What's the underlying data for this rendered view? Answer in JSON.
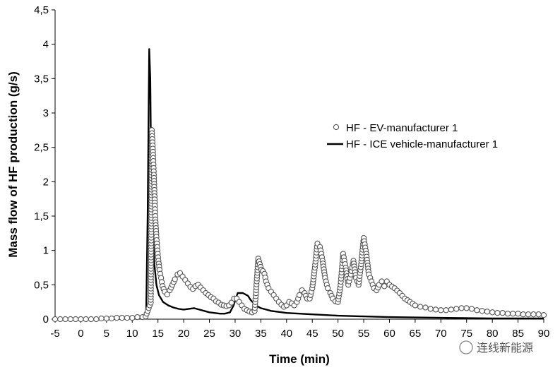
{
  "chart_data": {
    "type": "scatter",
    "title": "",
    "xlabel": "Time (min)",
    "ylabel": "Mass flow of HF production (g/s)",
    "xlim": [
      -5,
      90
    ],
    "ylim": [
      0,
      4.5
    ],
    "x_ticks": [
      "-5",
      "0",
      "5",
      "10",
      "15",
      "20",
      "25",
      "30",
      "35",
      "40",
      "45",
      "50",
      "55",
      "60",
      "65",
      "70",
      "75",
      "80",
      "85",
      "90"
    ],
    "y_ticks": [
      "0",
      "0,5",
      "1",
      "1,5",
      "2",
      "2,5",
      "3",
      "3,5",
      "4",
      "4,5"
    ],
    "grid": false,
    "legend_position": "right",
    "series": [
      {
        "name": "HF - EV-manufacturer 1",
        "style": "open-circles",
        "color": "#555555",
        "points": [
          [
            -5,
            0.0
          ],
          [
            -4,
            0.0
          ],
          [
            -3,
            0.0
          ],
          [
            -2,
            0.0
          ],
          [
            -1,
            0.0
          ],
          [
            0,
            0.0
          ],
          [
            1,
            0.0
          ],
          [
            2,
            0.0
          ],
          [
            3,
            0.0
          ],
          [
            4,
            0.01
          ],
          [
            5,
            0.01
          ],
          [
            6,
            0.01
          ],
          [
            7,
            0.02
          ],
          [
            8,
            0.02
          ],
          [
            9,
            0.02
          ],
          [
            10,
            0.02
          ],
          [
            11,
            0.03
          ],
          [
            12,
            0.03
          ],
          [
            12.6,
            0.04
          ],
          [
            13.6,
            0.24
          ],
          [
            13.7,
            1.35
          ],
          [
            13.8,
            2.75
          ],
          [
            13.9,
            2.62
          ],
          [
            14.0,
            2.48
          ],
          [
            14.1,
            2.3
          ],
          [
            14.2,
            2.1
          ],
          [
            14.3,
            1.88
          ],
          [
            14.4,
            1.65
          ],
          [
            14.5,
            1.45
          ],
          [
            14.7,
            1.2
          ],
          [
            14.9,
            1.0
          ],
          [
            15.1,
            0.85
          ],
          [
            15.3,
            0.72
          ],
          [
            15.6,
            0.6
          ],
          [
            15.9,
            0.48
          ],
          [
            16.3,
            0.4
          ],
          [
            16.8,
            0.36
          ],
          [
            17.3,
            0.42
          ],
          [
            17.8,
            0.5
          ],
          [
            18.3,
            0.58
          ],
          [
            18.8,
            0.65
          ],
          [
            19.3,
            0.67
          ],
          [
            19.8,
            0.62
          ],
          [
            20.3,
            0.57
          ],
          [
            20.8,
            0.52
          ],
          [
            21.3,
            0.47
          ],
          [
            21.8,
            0.44
          ],
          [
            22.3,
            0.48
          ],
          [
            22.8,
            0.5
          ],
          [
            23.3,
            0.46
          ],
          [
            23.8,
            0.42
          ],
          [
            24.3,
            0.38
          ],
          [
            24.8,
            0.35
          ],
          [
            25.3,
            0.32
          ],
          [
            25.8,
            0.3
          ],
          [
            26.3,
            0.26
          ],
          [
            26.8,
            0.24
          ],
          [
            27.3,
            0.21
          ],
          [
            27.8,
            0.2
          ],
          [
            28.3,
            0.19
          ],
          [
            28.8,
            0.2
          ],
          [
            29.3,
            0.24
          ],
          [
            29.8,
            0.3
          ],
          [
            30.3,
            0.3
          ],
          [
            30.8,
            0.25
          ],
          [
            31.3,
            0.2
          ],
          [
            31.8,
            0.15
          ],
          [
            32.3,
            0.13
          ],
          [
            32.8,
            0.11
          ],
          [
            33.3,
            0.1
          ],
          [
            33.8,
            0.12
          ],
          [
            34.2,
            0.55
          ],
          [
            34.5,
            0.88
          ],
          [
            34.8,
            0.8
          ],
          [
            35.1,
            0.72
          ],
          [
            35.4,
            0.7
          ],
          [
            35.7,
            0.66
          ],
          [
            36.0,
            0.55
          ],
          [
            36.5,
            0.45
          ],
          [
            37.0,
            0.4
          ],
          [
            37.5,
            0.35
          ],
          [
            38.0,
            0.3
          ],
          [
            38.5,
            0.25
          ],
          [
            39.0,
            0.21
          ],
          [
            39.5,
            0.18
          ],
          [
            40.0,
            0.2
          ],
          [
            40.5,
            0.25
          ],
          [
            41.0,
            0.23
          ],
          [
            41.5,
            0.2
          ],
          [
            42.0,
            0.25
          ],
          [
            42.5,
            0.35
          ],
          [
            43.0,
            0.42
          ],
          [
            43.5,
            0.38
          ],
          [
            44.0,
            0.3
          ],
          [
            44.5,
            0.3
          ],
          [
            45.0,
            0.45
          ],
          [
            45.5,
            0.75
          ],
          [
            46.0,
            1.1
          ],
          [
            46.5,
            1.05
          ],
          [
            47.0,
            0.85
          ],
          [
            47.5,
            0.6
          ],
          [
            48.0,
            0.45
          ],
          [
            48.5,
            0.38
          ],
          [
            49.0,
            0.3
          ],
          [
            49.5,
            0.26
          ],
          [
            50.0,
            0.25
          ],
          [
            50.5,
            0.5
          ],
          [
            51.0,
            0.95
          ],
          [
            51.5,
            0.75
          ],
          [
            52.0,
            0.5
          ],
          [
            52.5,
            0.65
          ],
          [
            53.0,
            0.85
          ],
          [
            53.5,
            0.6
          ],
          [
            54.0,
            0.5
          ],
          [
            54.5,
            0.8
          ],
          [
            55.0,
            1.18
          ],
          [
            55.5,
            0.95
          ],
          [
            56.0,
            0.65
          ],
          [
            56.5,
            0.55
          ],
          [
            57.0,
            0.45
          ],
          [
            57.5,
            0.42
          ],
          [
            58.0,
            0.5
          ],
          [
            58.5,
            0.55
          ],
          [
            59.0,
            0.48
          ],
          [
            59.5,
            0.55
          ],
          [
            60.0,
            0.5
          ],
          [
            61.0,
            0.45
          ],
          [
            62.0,
            0.38
          ],
          [
            63.0,
            0.3
          ],
          [
            64.0,
            0.25
          ],
          [
            65.0,
            0.2
          ],
          [
            66.0,
            0.18
          ],
          [
            67.0,
            0.17
          ],
          [
            68.0,
            0.15
          ],
          [
            69.0,
            0.14
          ],
          [
            70.0,
            0.13
          ],
          [
            71.0,
            0.13
          ],
          [
            72.0,
            0.14
          ],
          [
            73.0,
            0.15
          ],
          [
            74.0,
            0.16
          ],
          [
            75.0,
            0.16
          ],
          [
            76.0,
            0.15
          ],
          [
            77.0,
            0.13
          ],
          [
            78.0,
            0.12
          ],
          [
            79.0,
            0.11
          ],
          [
            80.0,
            0.1
          ],
          [
            81.0,
            0.09
          ],
          [
            82.0,
            0.09
          ],
          [
            83.0,
            0.08
          ],
          [
            84.0,
            0.08
          ],
          [
            85.0,
            0.08
          ],
          [
            86.0,
            0.07
          ],
          [
            87.0,
            0.07
          ],
          [
            88.0,
            0.07
          ],
          [
            89.0,
            0.07
          ],
          [
            90.0,
            0.06
          ]
        ]
      },
      {
        "name": "HF - ICE vehicle-manufacturer 1",
        "style": "line",
        "color": "#000000",
        "points": [
          [
            -5,
            0.0
          ],
          [
            5,
            0.0
          ],
          [
            10,
            0.01
          ],
          [
            12.7,
            0.02
          ],
          [
            13.0,
            1.5
          ],
          [
            13.3,
            3.93
          ],
          [
            13.5,
            3.5
          ],
          [
            13.7,
            2.0
          ],
          [
            14.0,
            1.3
          ],
          [
            14.3,
            0.8
          ],
          [
            14.7,
            0.5
          ],
          [
            15.2,
            0.35
          ],
          [
            16.0,
            0.25
          ],
          [
            17.0,
            0.2
          ],
          [
            18.0,
            0.17
          ],
          [
            19.0,
            0.15
          ],
          [
            20.0,
            0.14
          ],
          [
            21.0,
            0.15
          ],
          [
            22.0,
            0.16
          ],
          [
            23.0,
            0.14
          ],
          [
            24.0,
            0.12
          ],
          [
            25.0,
            0.1
          ],
          [
            26.0,
            0.09
          ],
          [
            27.0,
            0.08
          ],
          [
            28.0,
            0.08
          ],
          [
            29.0,
            0.1
          ],
          [
            29.7,
            0.2
          ],
          [
            30.5,
            0.38
          ],
          [
            31.5,
            0.38
          ],
          [
            32.5,
            0.34
          ],
          [
            33.0,
            0.28
          ],
          [
            34.0,
            0.2
          ],
          [
            35.0,
            0.16
          ],
          [
            37.0,
            0.12
          ],
          [
            40.0,
            0.09
          ],
          [
            45.0,
            0.07
          ],
          [
            50.0,
            0.05
          ],
          [
            55.0,
            0.04
          ],
          [
            60.0,
            0.03
          ],
          [
            70.0,
            0.02
          ],
          [
            80.0,
            0.01
          ],
          [
            90.0,
            0.01
          ]
        ]
      }
    ]
  },
  "watermark": "连线新能源",
  "colors": {
    "axis": "#000000",
    "markers": "#555555",
    "line": "#000000"
  }
}
